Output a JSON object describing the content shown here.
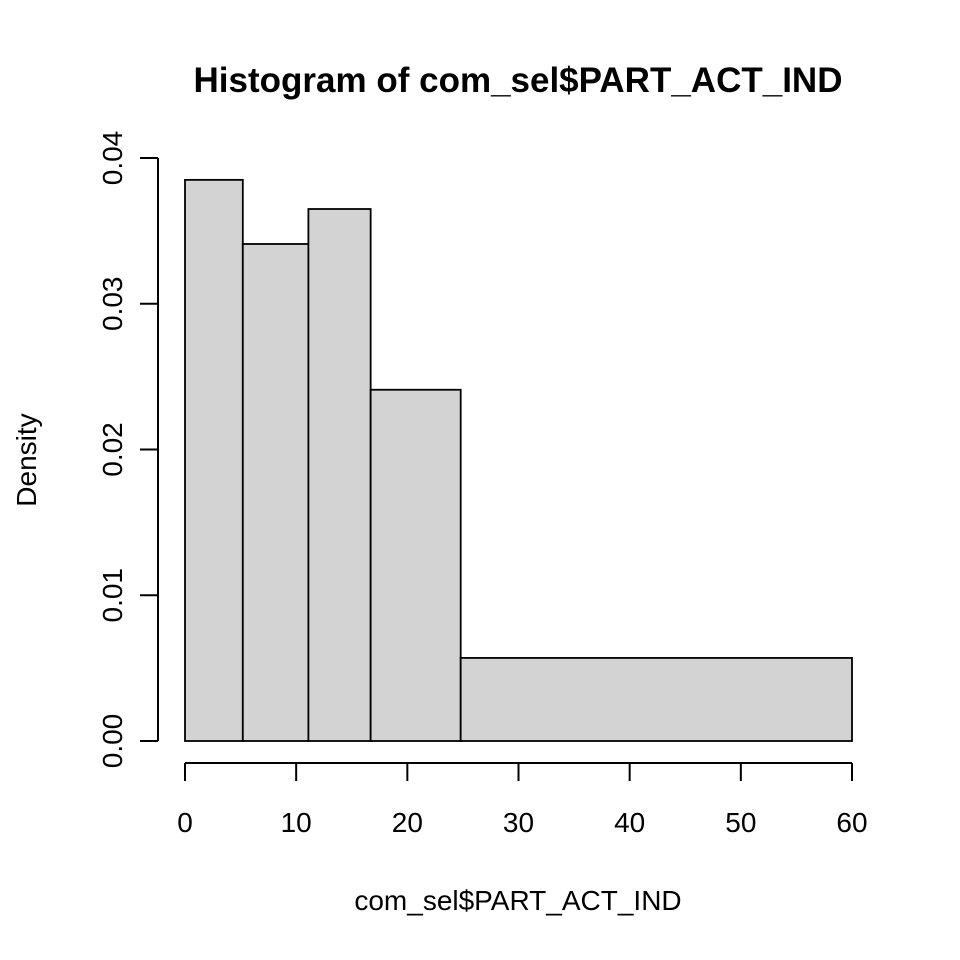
{
  "chart_data": {
    "type": "bar",
    "variant": "histogram",
    "title": "Histogram of com_sel$PART_ACT_IND",
    "xlabel": "com_sel$PART_ACT_IND",
    "ylabel": "Density",
    "xlim": [
      0,
      60
    ],
    "ylim": [
      0,
      0.04
    ],
    "x_ticks": [
      "0",
      "10",
      "20",
      "30",
      "40",
      "50",
      "60"
    ],
    "y_ticks": [
      "0.00",
      "0.01",
      "0.02",
      "0.03",
      "0.04"
    ],
    "bins": [
      {
        "start": 0,
        "end": 5.2,
        "density": 0.0385
      },
      {
        "start": 5.2,
        "end": 11.1,
        "density": 0.0341
      },
      {
        "start": 11.1,
        "end": 16.7,
        "density": 0.0365
      },
      {
        "start": 16.7,
        "end": 24.8,
        "density": 0.0241
      },
      {
        "start": 24.8,
        "end": 60,
        "density": 0.0057
      }
    ],
    "bar_color": "#d3d3d3",
    "grid": false,
    "legend": "none"
  }
}
